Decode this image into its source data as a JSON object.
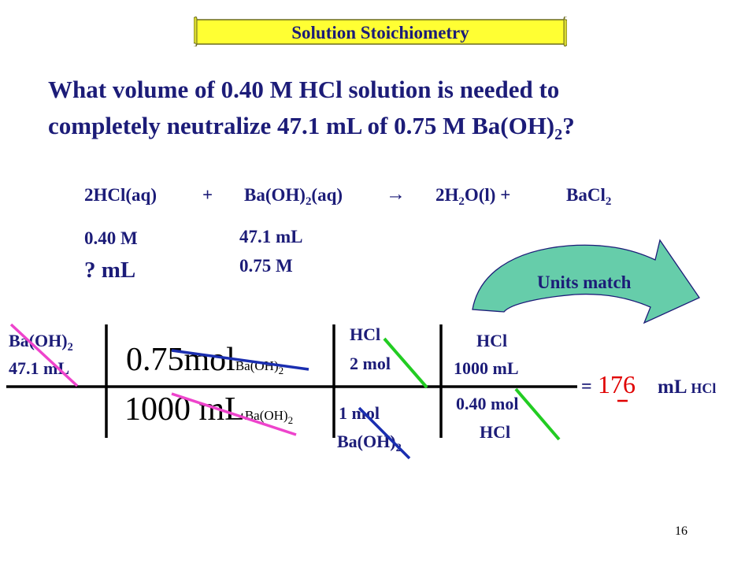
{
  "slide": {
    "title": "Solution Stoichiometry",
    "question_line1": "What volume of 0.40 M HCl solution is needed to",
    "question_line2_main": "completely neutralize 47.1 mL of 0.75 M Ba(OH)",
    "question_line2_sub": "2",
    "question_line2_end": "?",
    "page_number": "16"
  },
  "equation": {
    "term1": "2HCl(aq)",
    "plus1": "+",
    "term2_a": "Ba(OH)",
    "term2_sub": "2",
    "term2_b": "(aq)",
    "arrow": "→",
    "term3_a": "2H",
    "term3_sub": "2",
    "term3_b": "O(l) +",
    "term4_a": "BaCl",
    "term4_sub": "2"
  },
  "given": {
    "hcl_molarity": "0.40 M",
    "hcl_volume": "? mL",
    "base_volume": "47.1 mL",
    "base_molarity": "0.75 M"
  },
  "arrow_callout": {
    "label": "Units match",
    "fill": "#66cdaa"
  },
  "factor_label": {
    "col1_top_a": "Ba(OH)",
    "col1_top_sub": "2",
    "col1_top_b": "47.1 mL",
    "col2_top_a": "0.75mol",
    "col2_top_sub": "Ba(OH)",
    "col2_top_sub2": "2",
    "col2_bottom_a": "1000 mL",
    "col2_bottom_sub": "Ba(OH)",
    "col2_bottom_sub2": "2",
    "col3_top_a": "HCl",
    "col3_top_b": "2 mol",
    "col3_bottom_a": "1 mol",
    "col3_bottom_b": "Ba(OH)",
    "col3_bottom_sub": "2",
    "col4_top_a": "HCl",
    "col4_top_b": "1000 mL",
    "col4_bottom_a": "0.40 mol",
    "col4_bottom_b": "HCl",
    "equals": "=",
    "answer": "176",
    "unit": "mL",
    "unit_sub": "HCl"
  },
  "colors": {
    "answer": "#e00000",
    "cancel_pink": "#ee44cc",
    "cancel_blue": "#1a2eb0",
    "cancel_green": "#22cc22",
    "banner": "#ffff33",
    "text": "#1c1c78"
  }
}
